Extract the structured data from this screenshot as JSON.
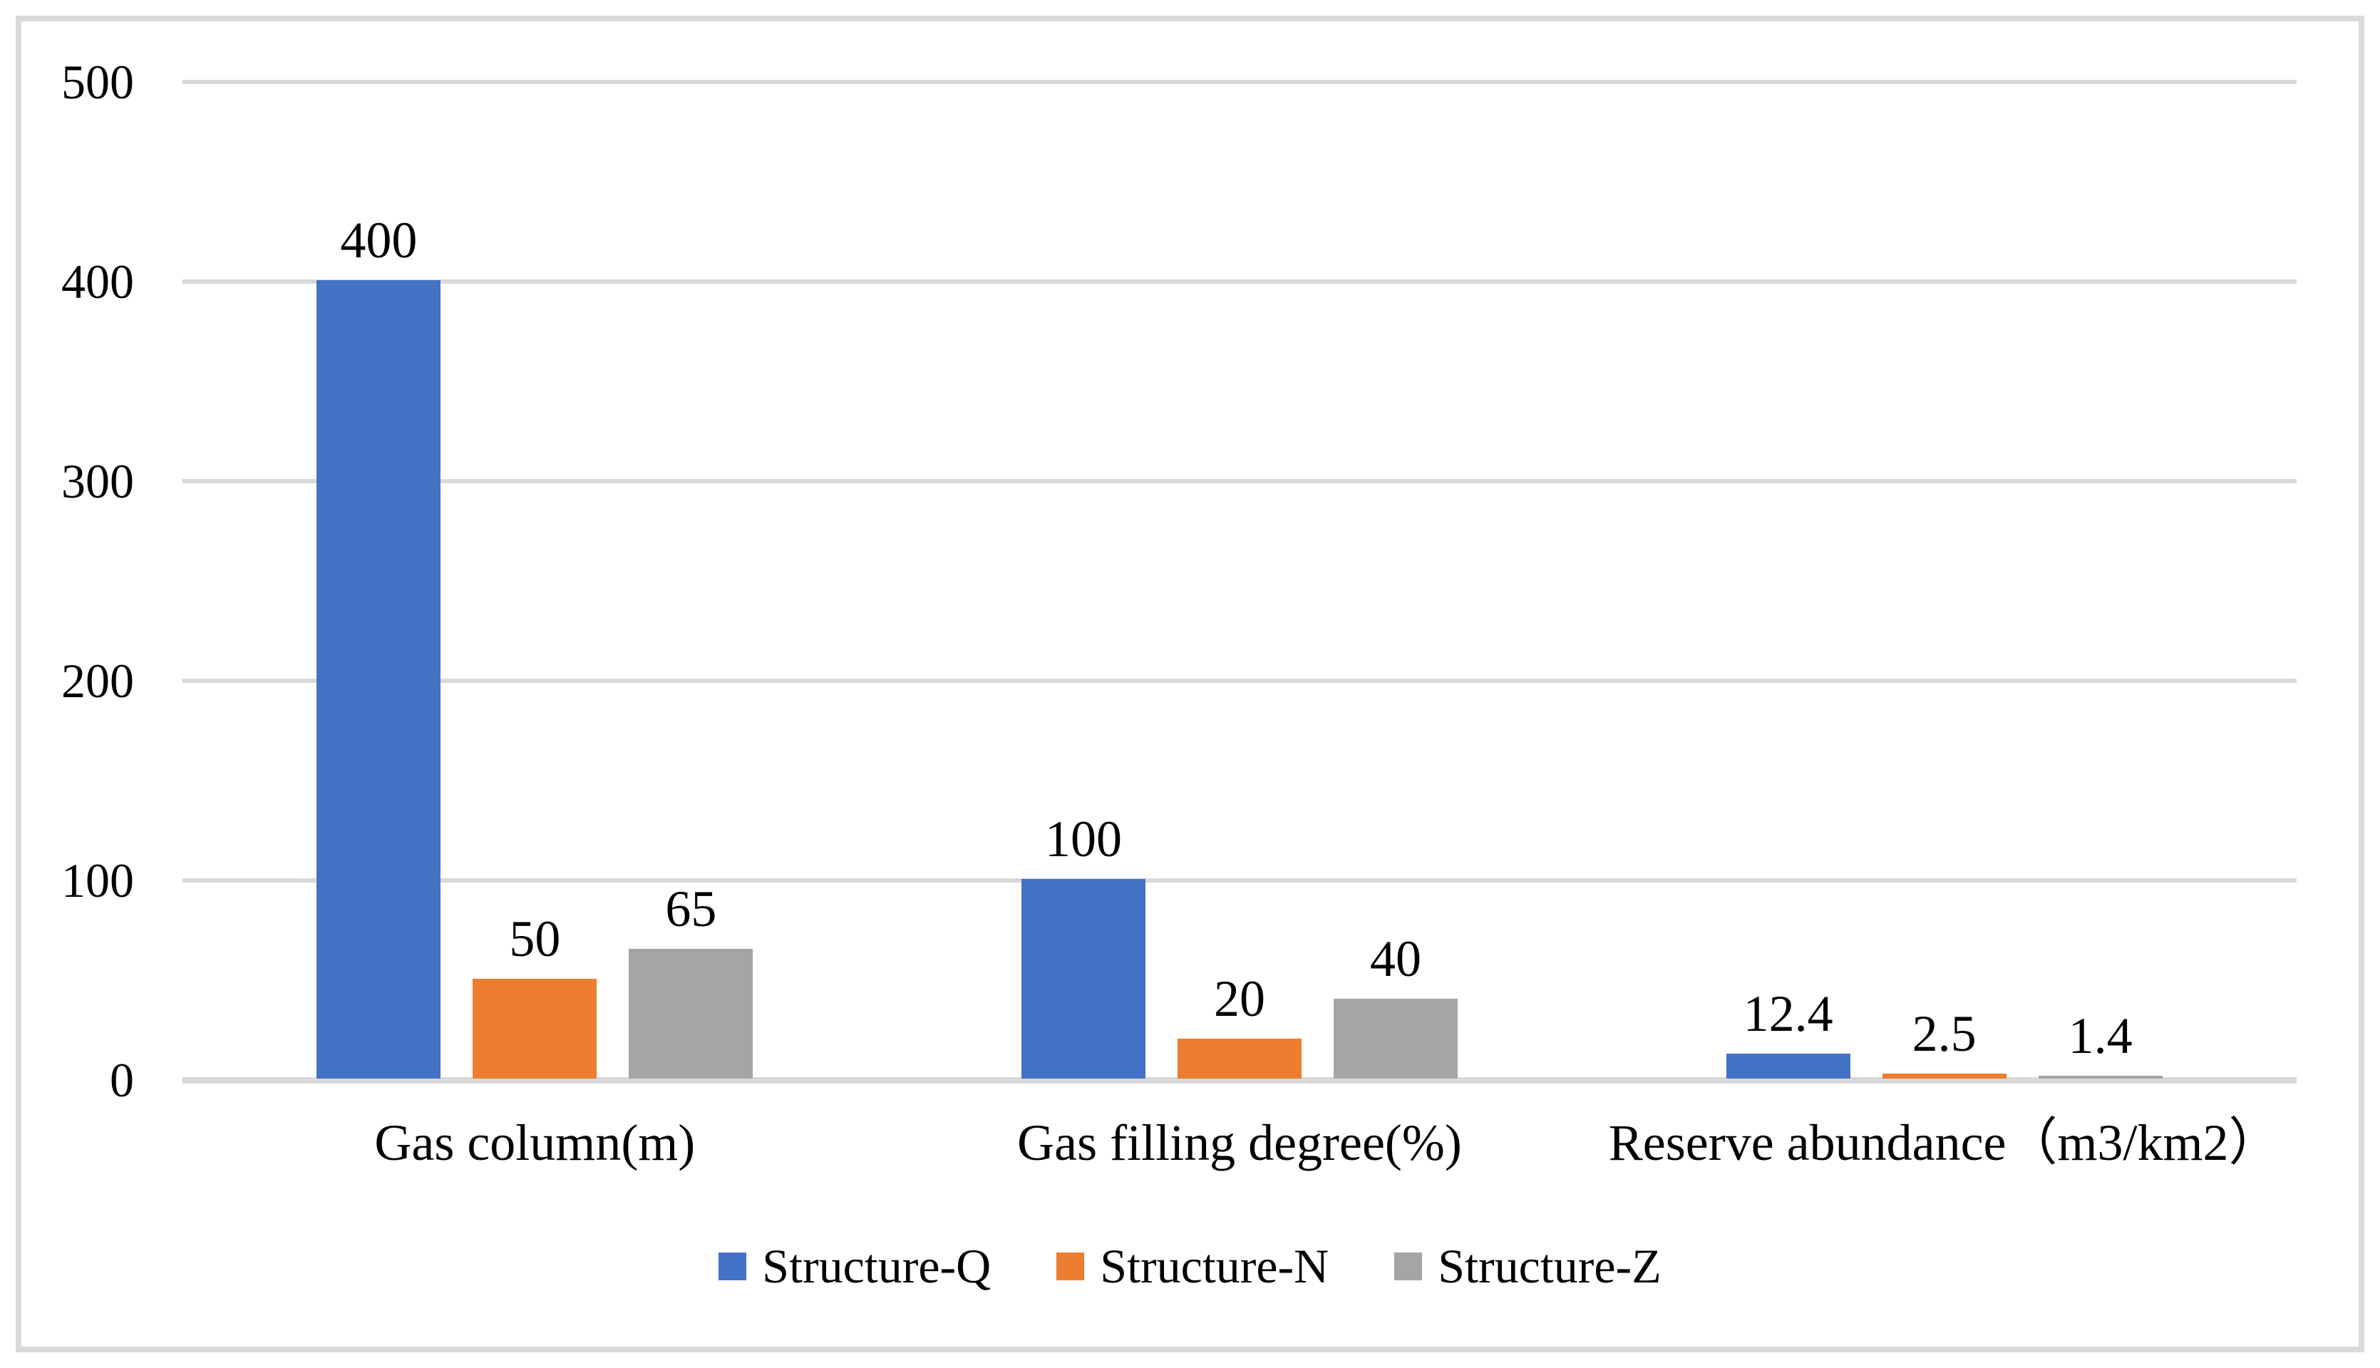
{
  "chart_data": {
    "type": "bar",
    "title": "",
    "categories": [
      "Gas column(m)",
      "Gas filling degree(%)",
      "Reserve abundance（m3/km2）"
    ],
    "series": [
      {
        "name": "Structure-Q",
        "color": "#4472C4",
        "values": [
          400,
          100,
          12.4
        ]
      },
      {
        "name": "Structure-N",
        "color": "#ED7D31",
        "values": [
          50,
          20,
          2.5
        ]
      },
      {
        "name": "Structure-Z",
        "color": "#A5A5A5",
        "values": [
          65,
          40,
          1.4
        ]
      }
    ],
    "data_labels": [
      [
        "400",
        "100",
        "12.4"
      ],
      [
        "50",
        "20",
        "2.5"
      ],
      [
        "65",
        "40",
        "1.4"
      ]
    ],
    "xlabel": "",
    "ylabel": "",
    "ylim": [
      0,
      500
    ],
    "yticks": [
      "0",
      "100",
      "200",
      "300",
      "400",
      "500"
    ],
    "grid": true,
    "legend_position": "bottom",
    "gridline_color": "#D9D9D9",
    "frame_color": "#D9D9D9",
    "text_color": "#000000",
    "background_color": "#FFFFFF"
  }
}
